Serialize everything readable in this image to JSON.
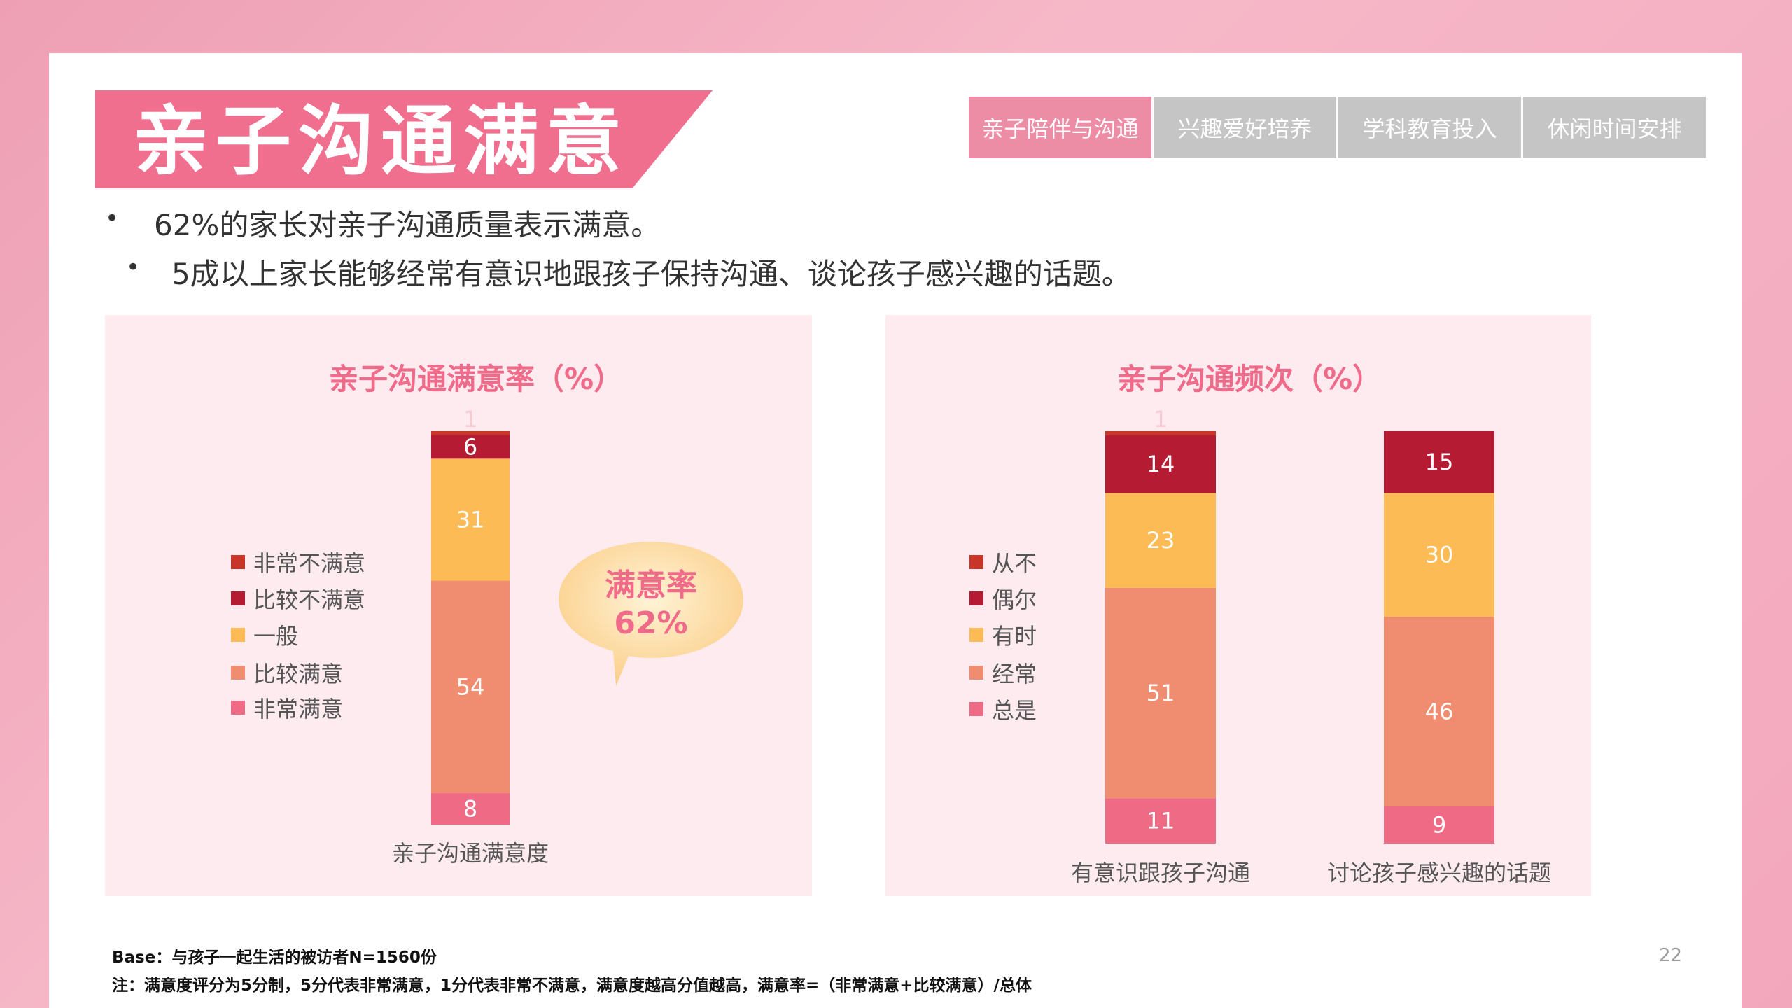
{
  "title": "亲子沟通满意",
  "tabs": [
    "亲子陪伴与沟通",
    "兴趣爱好培养",
    "学科教育投入",
    "休闲时间安排"
  ],
  "bullets": [
    "62%的家长对亲子沟通质量表示满意。",
    "5成以上家长能够经常有意识地跟孩子保持沟通、谈论孩子感兴趣的话题。"
  ],
  "bubble": {
    "line1": "满意率",
    "line2": "62%"
  },
  "colors": {
    "accent": "#f06f8f",
    "active_tab": "#ec8ca5",
    "inactive_tab": "#c5c5c5"
  },
  "chart_data": [
    {
      "type": "bar",
      "stacked": true,
      "title": "亲子沟通满意率（%）",
      "categories": [
        "亲子沟通满意度"
      ],
      "series": [
        {
          "name": "非常满意",
          "color": "#ef6a85",
          "values": [
            8
          ]
        },
        {
          "name": "比较满意",
          "color": "#f08c70",
          "values": [
            54
          ]
        },
        {
          "name": "一般",
          "color": "#fdbb55",
          "values": [
            31
          ]
        },
        {
          "name": "比较不满意",
          "color": "#b51b32",
          "values": [
            6
          ]
        },
        {
          "name": "非常不满意",
          "color": "#c8362a",
          "values": [
            1
          ]
        }
      ],
      "legend_order": [
        "非常不满意",
        "比较不满意",
        "一般",
        "比较满意",
        "非常满意"
      ],
      "legend_position": "left"
    },
    {
      "type": "bar",
      "stacked": true,
      "title": "亲子沟通频次（%）",
      "categories": [
        "有意识跟孩子沟通",
        "讨论孩子感兴趣的话题"
      ],
      "series": [
        {
          "name": "总是",
          "color": "#ef6a85",
          "values": [
            11,
            9
          ]
        },
        {
          "name": "经常",
          "color": "#f08c70",
          "values": [
            51,
            46
          ]
        },
        {
          "name": "有时",
          "color": "#fdbb55",
          "values": [
            23,
            30
          ]
        },
        {
          "name": "偶尔",
          "color": "#b51b32",
          "values": [
            14,
            15
          ]
        },
        {
          "name": "从不",
          "color": "#c8362a",
          "values": [
            1,
            0
          ]
        }
      ],
      "legend_order": [
        "从不",
        "偶尔",
        "有时",
        "经常",
        "总是"
      ],
      "legend_position": "left"
    }
  ],
  "footnotes": {
    "base": "Base：与孩子一起生活的被访者N=1560份",
    "note": "注：满意度评分为5分制，5分代表非常满意，1分代表非常不满意，满意度越高分值越高，满意率=（非常满意+比较满意）/总体"
  },
  "page_number": "22"
}
